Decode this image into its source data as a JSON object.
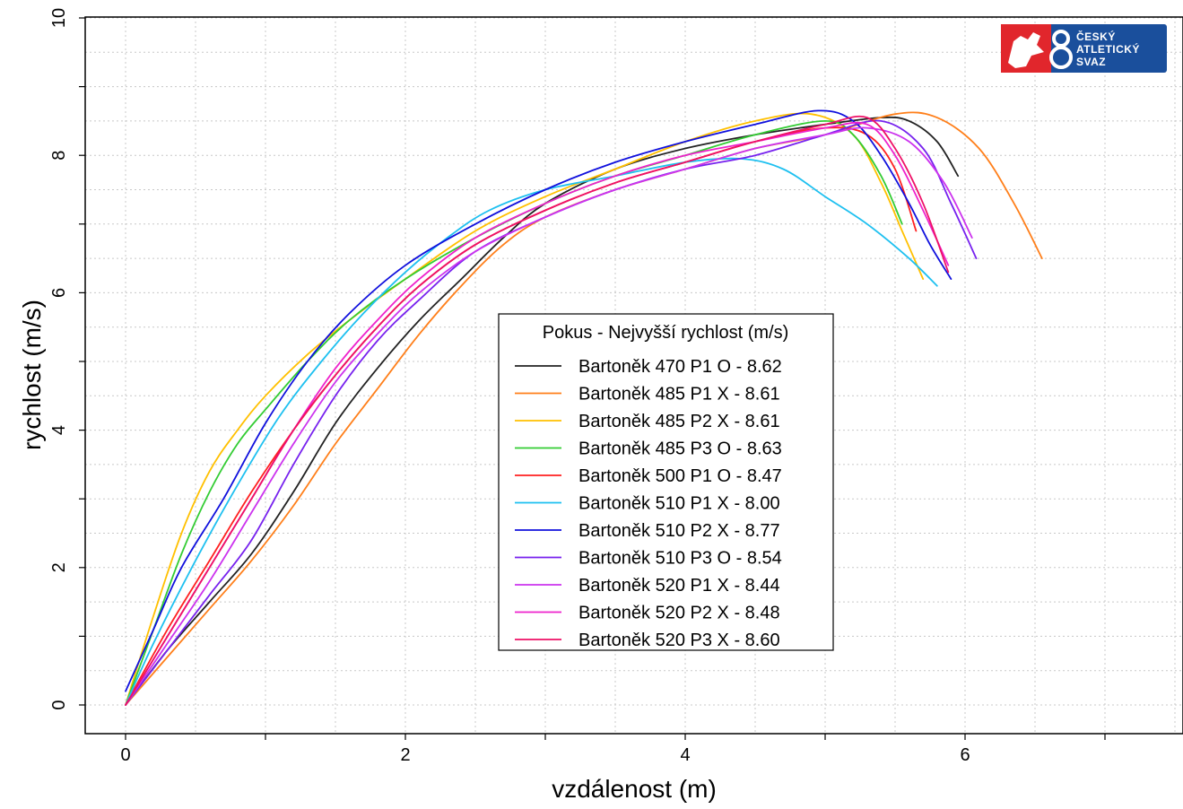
{
  "chart_data": {
    "type": "line",
    "xlabel": "vzdálenost (m)",
    "ylabel": "rychlost (m/s)",
    "xlim": [
      -0.3,
      7.5
    ],
    "ylim": [
      -0.4,
      10
    ],
    "x_ticks": [
      0,
      2,
      4,
      6
    ],
    "y_ticks": [
      0,
      2,
      4,
      6,
      8,
      10
    ],
    "grid": true,
    "legend_position": "center",
    "legend_title": "Pokus - Nejvyšší rychlost (m/s)",
    "series": [
      {
        "name": "Bartoněk 470 P1 O - 8.62",
        "color": "#222222",
        "x": [
          0,
          0.3,
          0.6,
          0.9,
          1.2,
          1.5,
          1.8,
          2.1,
          2.4,
          2.7,
          3.0,
          3.5,
          4.0,
          4.5,
          5.0,
          5.4,
          5.6,
          5.8,
          5.95
        ],
        "y": [
          0,
          0.8,
          1.5,
          2.2,
          3.1,
          4.1,
          4.9,
          5.6,
          6.2,
          6.8,
          7.3,
          7.8,
          8.1,
          8.3,
          8.45,
          8.55,
          8.5,
          8.2,
          7.7
        ]
      },
      {
        "name": "Bartoněk 485 P1 X - 8.61",
        "color": "#ff7f1a",
        "x": [
          0,
          0.3,
          0.6,
          0.9,
          1.2,
          1.5,
          1.8,
          2.1,
          2.4,
          2.7,
          3.0,
          3.5,
          4.0,
          4.5,
          5.0,
          5.5,
          5.8,
          6.1,
          6.35,
          6.55
        ],
        "y": [
          0,
          0.7,
          1.4,
          2.1,
          2.9,
          3.8,
          4.6,
          5.4,
          6.1,
          6.7,
          7.1,
          7.5,
          7.8,
          8.1,
          8.3,
          8.6,
          8.55,
          8.1,
          7.3,
          6.5
        ]
      },
      {
        "name": "Bartoněk 485 P2  X - 8.61",
        "color": "#ffc000",
        "x": [
          0,
          0.2,
          0.4,
          0.6,
          0.8,
          1.0,
          1.3,
          1.6,
          2.0,
          2.5,
          3.0,
          3.5,
          4.0,
          4.5,
          4.9,
          5.2,
          5.4,
          5.55,
          5.7
        ],
        "y": [
          0,
          1.3,
          2.5,
          3.4,
          4.0,
          4.5,
          5.1,
          5.6,
          6.2,
          6.9,
          7.4,
          7.8,
          8.2,
          8.5,
          8.6,
          8.3,
          7.6,
          6.9,
          6.2
        ]
      },
      {
        "name": "Bartoněk 485 P3 O - 8.63",
        "color": "#33cc33",
        "x": [
          0,
          0.2,
          0.4,
          0.6,
          0.8,
          1.0,
          1.3,
          1.6,
          2.0,
          2.5,
          3.0,
          3.5,
          4.0,
          4.5,
          5.0,
          5.2,
          5.4,
          5.55
        ],
        "y": [
          0,
          1.1,
          2.2,
          3.1,
          3.8,
          4.3,
          5.0,
          5.6,
          6.2,
          6.8,
          7.3,
          7.7,
          8.0,
          8.3,
          8.5,
          8.3,
          7.7,
          7.0
        ]
      },
      {
        "name": "Bartoněk 500 P1 O - 8.47",
        "color": "#ff2020",
        "x": [
          0,
          0.3,
          0.6,
          0.9,
          1.2,
          1.5,
          1.8,
          2.1,
          2.5,
          3.0,
          3.5,
          4.0,
          4.5,
          5.0,
          5.3,
          5.5,
          5.65
        ],
        "y": [
          0,
          1.1,
          2.1,
          3.1,
          4.0,
          4.8,
          5.5,
          6.1,
          6.7,
          7.2,
          7.6,
          7.9,
          8.2,
          8.4,
          8.3,
          7.8,
          6.9
        ]
      },
      {
        "name": "Bartoněk 510 P1 X - 8.00",
        "color": "#1ec0f0",
        "x": [
          0,
          0.2,
          0.5,
          0.8,
          1.1,
          1.4,
          1.7,
          2.0,
          2.3,
          2.6,
          3.0,
          3.5,
          4.0,
          4.4,
          4.7,
          5.0,
          5.3,
          5.6,
          5.8
        ],
        "y": [
          0,
          0.9,
          2.1,
          3.2,
          4.2,
          5.0,
          5.7,
          6.3,
          6.8,
          7.2,
          7.5,
          7.7,
          7.9,
          7.95,
          7.8,
          7.4,
          7.0,
          6.5,
          6.1
        ]
      },
      {
        "name": "Bartoněk 510 P2 X - 8.77",
        "color": "#1010dd",
        "x": [
          0,
          0.2,
          0.4,
          0.7,
          1.0,
          1.3,
          1.6,
          2.0,
          2.5,
          3.0,
          3.5,
          4.0,
          4.5,
          4.95,
          5.2,
          5.4,
          5.6,
          5.75,
          5.9
        ],
        "y": [
          0.2,
          1.1,
          2.0,
          3.0,
          4.1,
          5.0,
          5.7,
          6.4,
          7.0,
          7.5,
          7.9,
          8.2,
          8.45,
          8.65,
          8.5,
          8.0,
          7.3,
          6.7,
          6.2
        ]
      },
      {
        "name": "Bartoněk 510 P3 O - 8.54",
        "color": "#7722ee",
        "x": [
          0,
          0.3,
          0.6,
          0.9,
          1.2,
          1.5,
          1.8,
          2.1,
          2.5,
          3.0,
          3.5,
          4.0,
          4.5,
          5.0,
          5.4,
          5.7,
          5.9,
          6.08
        ],
        "y": [
          0,
          0.8,
          1.6,
          2.4,
          3.5,
          4.5,
          5.3,
          5.9,
          6.6,
          7.1,
          7.5,
          7.8,
          8.0,
          8.3,
          8.5,
          8.1,
          7.3,
          6.5
        ]
      },
      {
        "name": "Bartoněk 520 P1 X - 8.44",
        "color": "#cc33ee",
        "x": [
          0,
          0.3,
          0.6,
          0.9,
          1.2,
          1.5,
          1.8,
          2.1,
          2.5,
          3.0,
          3.5,
          4.0,
          4.5,
          5.0,
          5.3,
          5.6,
          5.85,
          6.05
        ],
        "y": [
          0,
          0.9,
          1.8,
          2.8,
          3.8,
          4.7,
          5.4,
          6.0,
          6.6,
          7.1,
          7.5,
          7.8,
          8.1,
          8.3,
          8.4,
          8.2,
          7.6,
          6.8
        ]
      },
      {
        "name": "Bartoněk 520 P2 X - 8.48",
        "color": "#ee22cc",
        "x": [
          0,
          0.3,
          0.6,
          0.9,
          1.2,
          1.5,
          1.8,
          2.1,
          2.5,
          3.0,
          3.5,
          4.0,
          4.5,
          5.0,
          5.3,
          5.5,
          5.7,
          5.88
        ],
        "y": [
          0,
          1.0,
          2.0,
          3.0,
          4.0,
          4.9,
          5.6,
          6.2,
          6.8,
          7.3,
          7.7,
          8.0,
          8.2,
          8.4,
          8.45,
          8.0,
          7.2,
          6.4
        ]
      },
      {
        "name": "Bartoněk 520 P3 X - 8.60",
        "color": "#ee1166",
        "x": [
          0,
          0.3,
          0.6,
          0.9,
          1.2,
          1.5,
          1.8,
          2.1,
          2.5,
          3.0,
          3.5,
          4.0,
          4.5,
          5.0,
          5.3,
          5.5,
          5.7,
          5.88
        ],
        "y": [
          0,
          1.0,
          2.0,
          3.0,
          4.0,
          4.8,
          5.5,
          6.1,
          6.7,
          7.2,
          7.6,
          7.9,
          8.2,
          8.45,
          8.55,
          8.1,
          7.3,
          6.3
        ]
      }
    ]
  },
  "logo": {
    "lines": [
      "ČESKÝ",
      "ATLETICKÝ",
      "SVAZ"
    ],
    "colors": {
      "red": "#e1262c",
      "blue": "#1a4f9c"
    }
  }
}
